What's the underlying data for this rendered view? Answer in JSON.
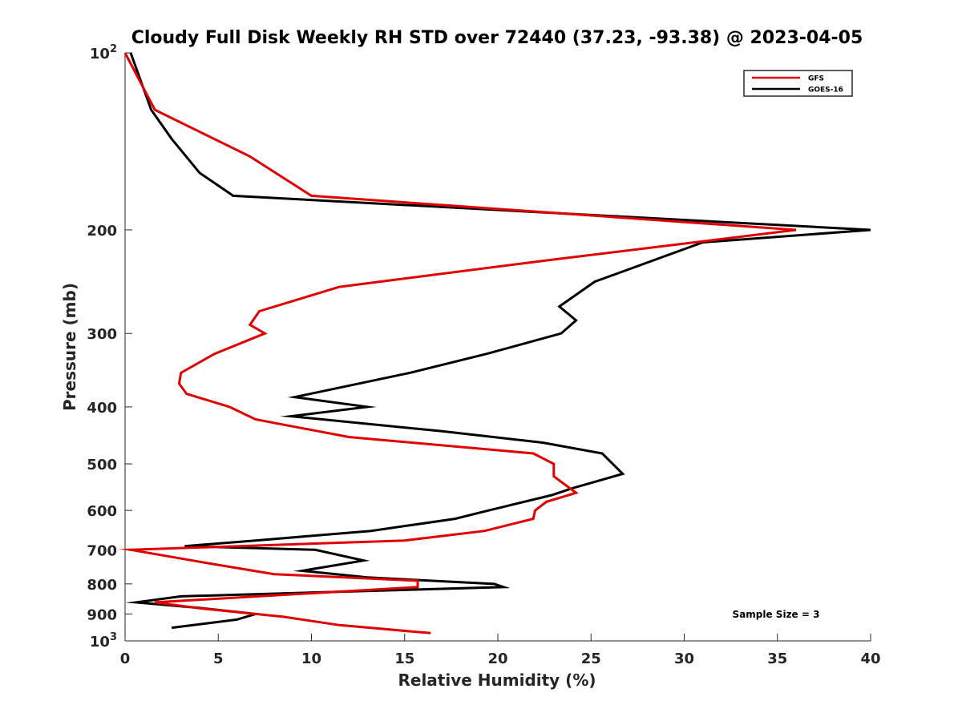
{
  "chart_data": {
    "type": "line",
    "title": "Cloudy Full Disk Weekly RH STD over 72440 (37.23, -93.38) @ 2023-04-05",
    "xlabel": "Relative Humidity (%)",
    "ylabel": "Pressure (mb)",
    "xlim": [
      0,
      40
    ],
    "ylim": [
      100,
      1000
    ],
    "yscale": "log",
    "y_reversed": true,
    "grid": false,
    "legend_position": "top-right",
    "x_ticks": [
      "0",
      "5",
      "10",
      "15",
      "20",
      "25",
      "30",
      "35",
      "40"
    ],
    "y_ticks": [
      {
        "value": 100,
        "base": "10",
        "exp": "2"
      },
      {
        "value": 200,
        "label": "200"
      },
      {
        "value": 300,
        "label": "300"
      },
      {
        "value": 400,
        "label": "400"
      },
      {
        "value": 500,
        "label": "500"
      },
      {
        "value": 600,
        "label": "600"
      },
      {
        "value": 700,
        "label": "700"
      },
      {
        "value": 800,
        "label": "800"
      },
      {
        "value": 900,
        "label": "900"
      },
      {
        "value": 1000,
        "base": "10",
        "exp": "3"
      }
    ],
    "annotation": "Sample Size = 3",
    "series": [
      {
        "name": "GFS",
        "color": "#e00000",
        "points": [
          [
            0,
            100
          ],
          [
            1.6,
            125
          ],
          [
            6.7,
            150
          ],
          [
            10,
            175
          ],
          [
            36,
            200
          ],
          [
            22.8,
            225
          ],
          [
            11.5,
            250
          ],
          [
            7.2,
            275
          ],
          [
            6.7,
            290
          ],
          [
            7.5,
            300
          ],
          [
            4.8,
            325
          ],
          [
            3.0,
            350
          ],
          [
            2.9,
            365
          ],
          [
            3.3,
            380
          ],
          [
            5.6,
            400
          ],
          [
            7.0,
            420
          ],
          [
            12.0,
            450
          ],
          [
            21.9,
            480
          ],
          [
            23.0,
            500
          ],
          [
            23.0,
            525
          ],
          [
            24.2,
            560
          ],
          [
            22.6,
            580
          ],
          [
            22.0,
            600
          ],
          [
            21.9,
            620
          ],
          [
            19.3,
            650
          ],
          [
            15.0,
            675
          ],
          [
            0.3,
            700
          ],
          [
            4.7,
            740
          ],
          [
            8.0,
            770
          ],
          [
            15.7,
            790
          ],
          [
            15.7,
            810
          ],
          [
            1.6,
            860
          ],
          [
            4.0,
            880
          ],
          [
            8.5,
            910
          ],
          [
            11.5,
            940
          ],
          [
            16.4,
            970
          ]
        ]
      },
      {
        "name": "GOES-16",
        "color": "#000000",
        "points": [
          [
            0.3,
            100
          ],
          [
            1.4,
            125
          ],
          [
            2.5,
            140
          ],
          [
            4.0,
            160
          ],
          [
            5.8,
            175
          ],
          [
            40,
            200
          ],
          [
            31.0,
            210
          ],
          [
            25.2,
            245
          ],
          [
            23.3,
            270
          ],
          [
            24.2,
            285
          ],
          [
            23.4,
            300
          ],
          [
            19.4,
            325
          ],
          [
            15.3,
            350
          ],
          [
            9.1,
            385
          ],
          [
            13.0,
            400
          ],
          [
            8.9,
            415
          ],
          [
            17.0,
            440
          ],
          [
            22.4,
            460
          ],
          [
            25.6,
            480
          ],
          [
            26.7,
            520
          ],
          [
            24.0,
            550
          ],
          [
            22.9,
            565
          ],
          [
            19.5,
            600
          ],
          [
            17.7,
            620
          ],
          [
            13.2,
            650
          ],
          [
            7.0,
            675
          ],
          [
            3.2,
            690
          ],
          [
            10.2,
            700
          ],
          [
            12.8,
            730
          ],
          [
            9.5,
            760
          ],
          [
            13.0,
            780
          ],
          [
            19.8,
            800
          ],
          [
            20.3,
            810
          ],
          [
            3.0,
            840
          ],
          [
            0.6,
            860
          ],
          [
            4.2,
            880
          ],
          [
            7.0,
            900
          ],
          [
            6.0,
            920
          ],
          [
            2.5,
            950
          ]
        ]
      }
    ]
  }
}
